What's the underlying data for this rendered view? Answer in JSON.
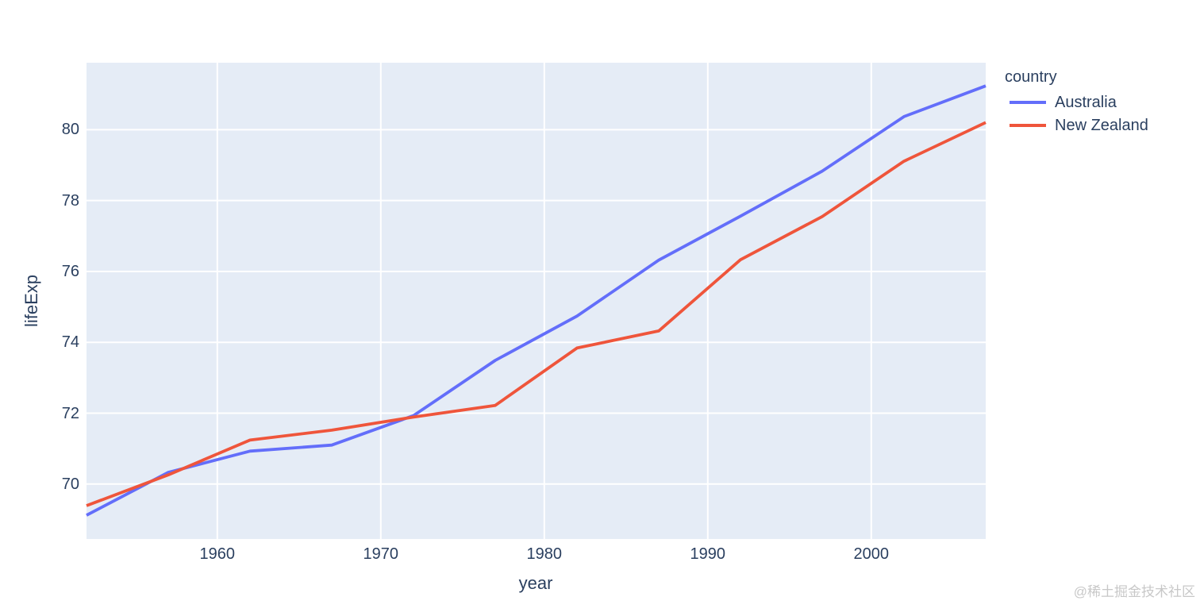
{
  "chart_data": {
    "type": "line",
    "title": "",
    "xlabel": "year",
    "ylabel": "lifeExp",
    "legend_title": "country",
    "legend_position": "right-top",
    "grid": true,
    "plot_bg_color": "#E5ECF6",
    "grid_color": "#FFFFFF",
    "text_color": "#2A3F5F",
    "xlim": [
      1952,
      2007
    ],
    "ylim": [
      68.45,
      81.89
    ],
    "xticks": [
      1960,
      1970,
      1980,
      1990,
      2000
    ],
    "yticks": [
      70,
      72,
      74,
      76,
      78,
      80
    ],
    "x": [
      1952,
      1957,
      1962,
      1967,
      1972,
      1977,
      1982,
      1987,
      1992,
      1997,
      2002,
      2007
    ],
    "series": [
      {
        "name": "Australia",
        "color": "#636EFA",
        "values": [
          69.12,
          70.33,
          70.93,
          71.1,
          71.93,
          73.49,
          74.74,
          76.32,
          77.56,
          78.83,
          80.37,
          81.235
        ]
      },
      {
        "name": "New Zealand",
        "color": "#EF553B",
        "values": [
          69.39,
          70.26,
          71.24,
          71.52,
          71.89,
          72.22,
          73.84,
          74.32,
          76.33,
          77.55,
          79.11,
          80.204
        ]
      }
    ]
  },
  "watermark": "@稀土掘金技术社区"
}
